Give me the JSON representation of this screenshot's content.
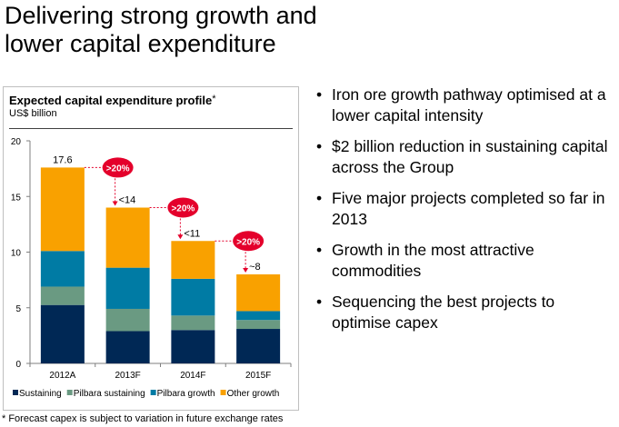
{
  "slide": {
    "title_line1": "Delivering strong growth and",
    "title_line2": "lower capital expenditure",
    "footnote": "* Forecast capex is subject to variation in future exchange rates",
    "bullets": [
      "Iron ore growth pathway optimised at a lower capital intensity",
      "$2 billion reduction in sustaining capital across the Group",
      "Five major projects completed so far in 2013",
      "Growth in the most attractive commodities",
      "Sequencing the best projects to optimise capex"
    ],
    "bullet_glyph": "•"
  },
  "chart_data": {
    "type": "bar",
    "stacked": true,
    "title": "Expected capital expenditure profile",
    "title_marker": "*",
    "subtitle": "US$ billion",
    "xlabel": "",
    "ylabel": "US$ billion",
    "ylim": [
      0,
      20
    ],
    "yticks": [
      0,
      5,
      10,
      15,
      20
    ],
    "categories": [
      "2012A",
      "2013F",
      "2014F",
      "2015F"
    ],
    "series": [
      {
        "name": "Sustaining",
        "color": "#002855",
        "values": [
          5.25,
          2.9,
          3.0,
          3.1
        ]
      },
      {
        "name": "Pilbara sustaining",
        "color": "#6a9a82",
        "values": [
          1.65,
          2.0,
          1.3,
          0.8
        ]
      },
      {
        "name": "Pilbara growth",
        "color": "#007ba4",
        "values": [
          3.2,
          3.7,
          3.3,
          0.8
        ]
      },
      {
        "name": "Other growth",
        "color": "#f9a100",
        "values": [
          7.5,
          5.4,
          3.4,
          3.3
        ]
      }
    ],
    "totals": [
      17.6,
      14,
      11,
      8
    ],
    "total_labels": [
      "17.6",
      "<14",
      "<11",
      "~8"
    ],
    "reduction_badges": [
      ">20%",
      ">20%",
      ">20%"
    ],
    "badge_color": "#e4002b",
    "legend_position": "bottom",
    "grid": false
  }
}
